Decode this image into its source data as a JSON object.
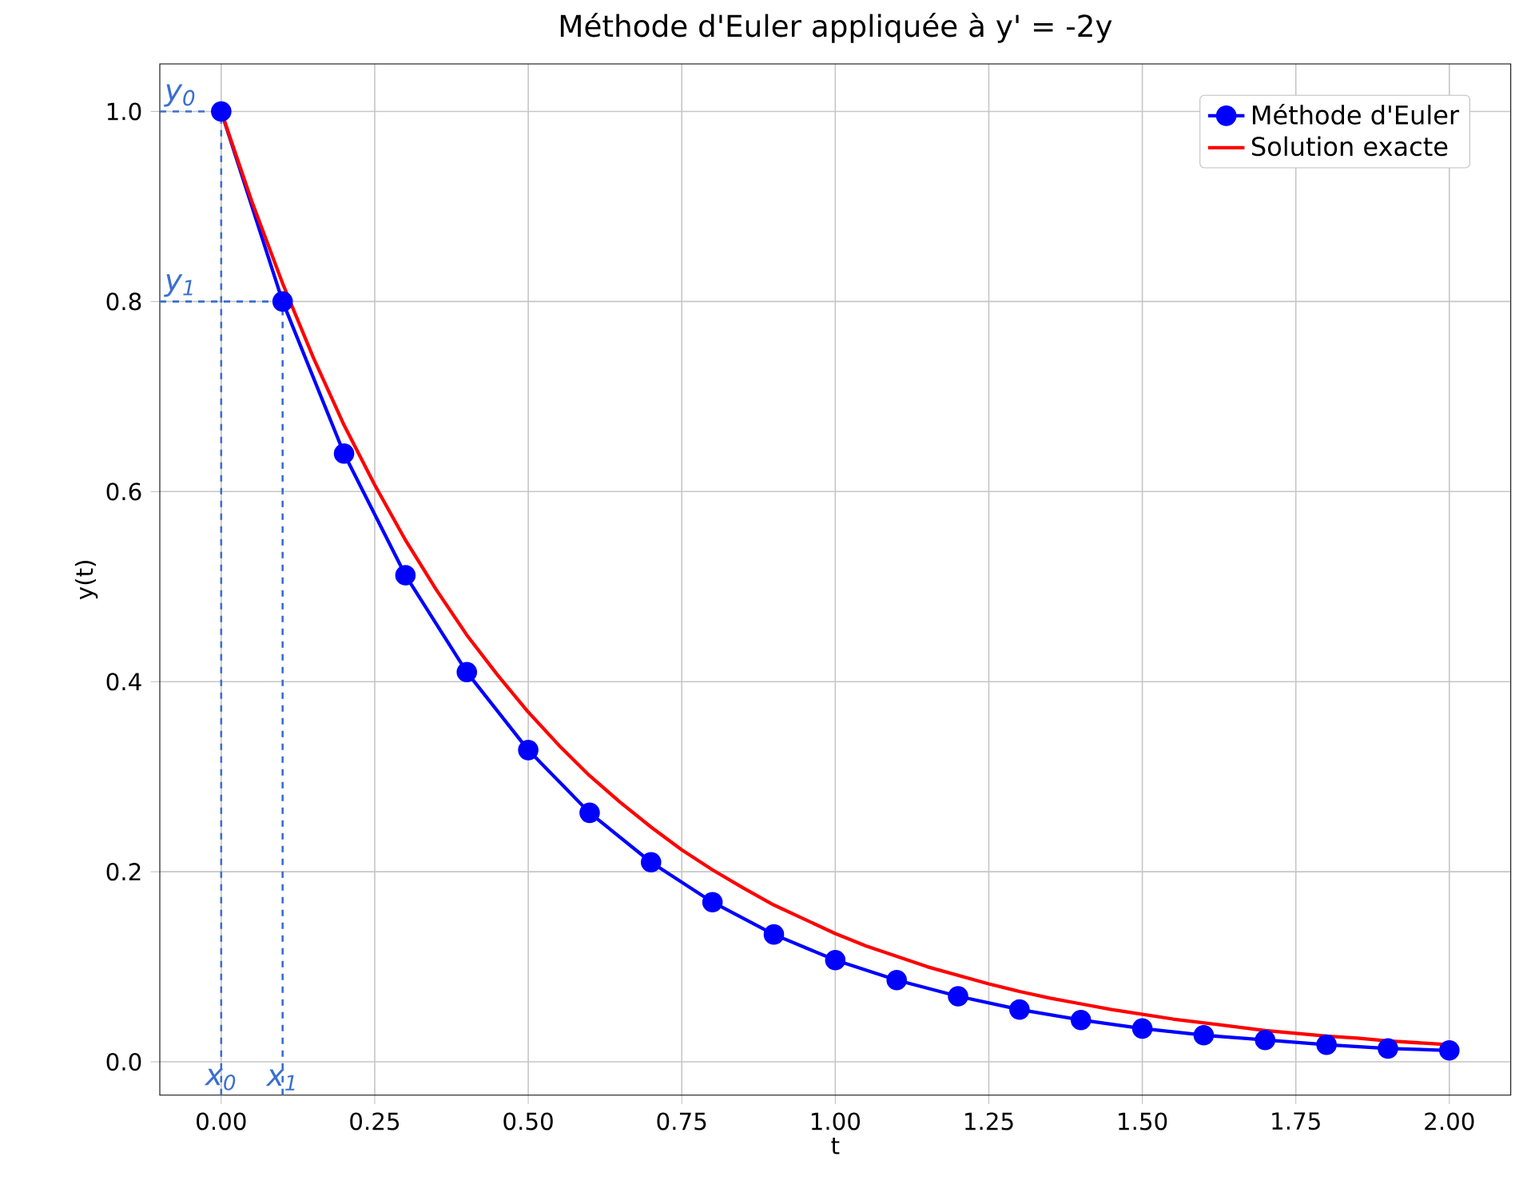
{
  "chart_data": {
    "type": "line",
    "title": "Méthode d'Euler appliquée à y' = -2y",
    "xlabel": "t",
    "ylabel": "y(t)",
    "xlim": [
      -0.1,
      2.1
    ],
    "ylim": [
      -0.035,
      1.05
    ],
    "xticks": [
      {
        "value": 0,
        "label": "0.00"
      },
      {
        "value": 0.25,
        "label": "0.25"
      },
      {
        "value": 0.5,
        "label": "0.50"
      },
      {
        "value": 0.75,
        "label": "0.75"
      },
      {
        "value": 1,
        "label": "1.00"
      },
      {
        "value": 1.25,
        "label": "1.25"
      },
      {
        "value": 1.5,
        "label": "1.50"
      },
      {
        "value": 1.75,
        "label": "1.75"
      },
      {
        "value": 2,
        "label": "2.00"
      }
    ],
    "yticks": [
      {
        "value": 0,
        "label": "0.0"
      },
      {
        "value": 0.2,
        "label": "0.2"
      },
      {
        "value": 0.4,
        "label": "0.4"
      },
      {
        "value": 0.6,
        "label": "0.6"
      },
      {
        "value": 0.8,
        "label": "0.8"
      },
      {
        "value": 1,
        "label": "1.0"
      }
    ],
    "grid": true,
    "legend": "top right",
    "series": [
      {
        "name": "Méthode d'Euler",
        "color": "#0000ff",
        "marker": "circle",
        "x": [
          0,
          0.1,
          0.2,
          0.3,
          0.4,
          0.5,
          0.6,
          0.7,
          0.8,
          0.9,
          1.0,
          1.1,
          1.2,
          1.3,
          1.4,
          1.5,
          1.6,
          1.7,
          1.8,
          1.9,
          2.0
        ],
        "values": [
          1,
          0.8,
          0.64,
          0.512,
          0.41,
          0.328,
          0.262,
          0.21,
          0.168,
          0.134,
          0.107,
          0.086,
          0.069,
          0.055,
          0.044,
          0.035,
          0.028,
          0.023,
          0.018,
          0.014,
          0.012
        ]
      },
      {
        "name": "Solution exacte",
        "color": "#ff0000",
        "marker": "none",
        "x": [
          0,
          0.05,
          0.1,
          0.15,
          0.2,
          0.25,
          0.3,
          0.35,
          0.4,
          0.45,
          0.5,
          0.55,
          0.6,
          0.65,
          0.7,
          0.75,
          0.8,
          0.85,
          0.9,
          0.95,
          1.0,
          1.05,
          1.1,
          1.15,
          1.2,
          1.25,
          1.3,
          1.35,
          1.4,
          1.45,
          1.5,
          1.55,
          1.6,
          1.65,
          1.7,
          1.75,
          1.8,
          1.85,
          1.9,
          1.95,
          2.0
        ],
        "values": [
          1,
          0.905,
          0.819,
          0.741,
          0.67,
          0.607,
          0.549,
          0.497,
          0.449,
          0.407,
          0.368,
          0.333,
          0.301,
          0.273,
          0.247,
          0.223,
          0.202,
          0.183,
          0.165,
          0.15,
          0.135,
          0.122,
          0.111,
          0.1,
          0.091,
          0.082,
          0.074,
          0.067,
          0.061,
          0.055,
          0.05,
          0.045,
          0.041,
          0.037,
          0.033,
          0.03,
          0.027,
          0.025,
          0.022,
          0.02,
          0.018
        ]
      }
    ],
    "ref_lines": [
      {
        "axis": "x",
        "value": 0,
        "label": "x$_{0}$",
        "color": "#3a6fcf",
        "line_style": "dashed"
      },
      {
        "axis": "x",
        "value": 0.1,
        "label": "x$_{1}$",
        "color": "#3a6fcf",
        "line_style": "dashed"
      },
      {
        "axis": "y",
        "value": 1,
        "label": "y$_{0}$",
        "color": "#3a6fcf",
        "line_style": "dashed"
      },
      {
        "axis": "y",
        "value": 0.8,
        "label": "y$_{1}$",
        "color": "#3a6fcf",
        "line_style": "dashed"
      }
    ]
  }
}
